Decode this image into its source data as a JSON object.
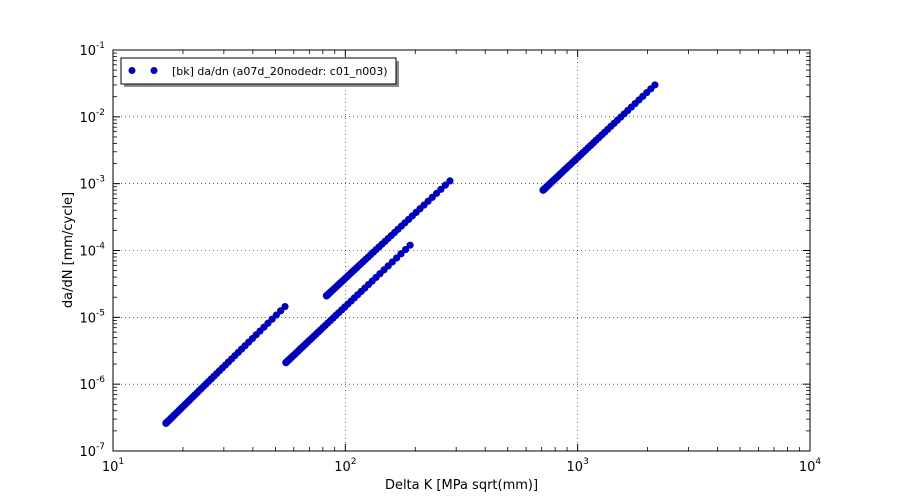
{
  "chart_data": {
    "type": "scatter",
    "xlabel": "Delta K [MPa sqrt(mm)]",
    "ylabel": "da/dN [mm/cycle]",
    "xscale": "log",
    "yscale": "log",
    "xlim": [
      10,
      10000
    ],
    "ylim": [
      1e-07,
      0.1
    ],
    "grid": true,
    "legend_position": "top-left",
    "x_tick_labels": [
      {
        "base": "10",
        "exp": "1"
      },
      {
        "base": "10",
        "exp": "2"
      },
      {
        "base": "10",
        "exp": "3"
      },
      {
        "base": "10",
        "exp": "4"
      }
    ],
    "y_tick_labels": [
      {
        "base": "10",
        "exp": "-7"
      },
      {
        "base": "10",
        "exp": "-6"
      },
      {
        "base": "10",
        "exp": "-5"
      },
      {
        "base": "10",
        "exp": "-4"
      },
      {
        "base": "10",
        "exp": "-3"
      },
      {
        "base": "10",
        "exp": "-2"
      },
      {
        "base": "10",
        "exp": "-1"
      }
    ],
    "series": [
      {
        "name": "[bk] da/dn (a07d_20nodedr: c01_n003)",
        "color": "#0000bb",
        "segments": [
          {
            "x_start": 16.9,
            "x_end": 55.0,
            "y_start": 2.6e-07,
            "y_end": 1.45e-05,
            "extra_x": [],
            "extra_y": []
          },
          {
            "x_start": 55.5,
            "x_end": 190.0,
            "y_start": 2.1e-06,
            "y_end": 0.00012,
            "extra_x": [],
            "extra_y": []
          },
          {
            "x_start": 83.0,
            "x_end": 282.0,
            "y_start": 2.1e-05,
            "y_end": 0.0011,
            "extra_x": [],
            "extra_y": []
          },
          {
            "x_start": 710.0,
            "x_end": 2150.0,
            "y_start": 0.0008,
            "y_end": 0.03,
            "extra_x": [],
            "extra_y": []
          }
        ]
      }
    ]
  }
}
